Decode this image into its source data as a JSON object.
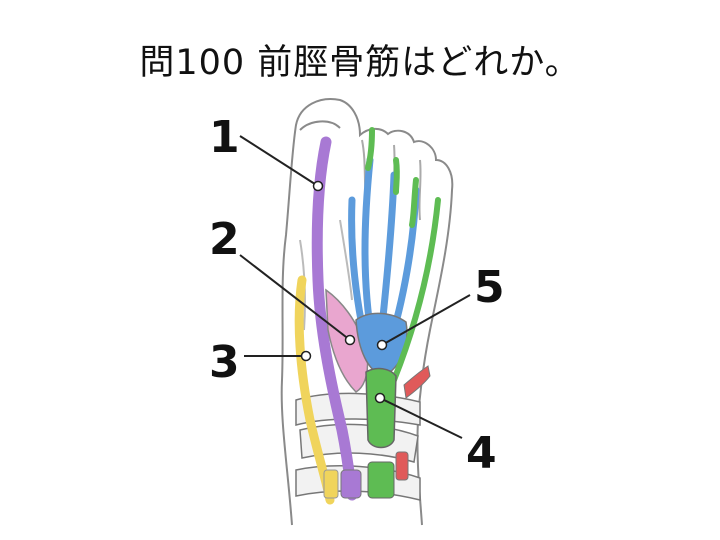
{
  "question": {
    "title": "問100 前脛骨筋はどれか。"
  },
  "labels": [
    "1",
    "2",
    "3",
    "4",
    "5"
  ],
  "colors": {
    "purple": "#a879d4",
    "pink": "#e9a6cf",
    "yellow": "#f0d45c",
    "green": "#5ebc53",
    "blue": "#5c9bdc",
    "red": "#e05a5a",
    "outline": "#8a8a8a"
  }
}
